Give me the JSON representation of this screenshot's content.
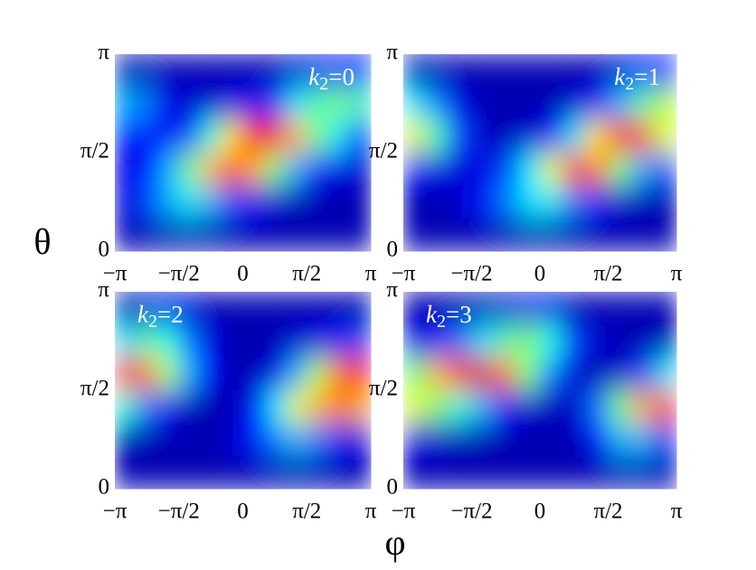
{
  "xlabel": "φ",
  "ylabel": "θ",
  "chart_data": [
    {
      "type": "heatmap",
      "colormap": "jet",
      "clim": [
        0,
        1
      ],
      "annotation": {
        "var": "k",
        "sub": "2",
        "rest": "=0"
      },
      "annotation_corner": "upper right",
      "xlim": [
        -3.14159,
        3.14159
      ],
      "ylim": [
        0,
        3.14159
      ],
      "xticks": [
        {
          "value": -3.14159,
          "label": "−π"
        },
        {
          "value": -1.5708,
          "label": "−π/2"
        },
        0,
        {
          "value": 1.5708,
          "label": "π/2"
        },
        {
          "value": 3.14159,
          "label": "π"
        }
      ],
      "yticks": [
        0,
        {
          "value": 1.5708,
          "label": "π/2"
        },
        {
          "value": 3.14159,
          "label": "π"
        }
      ],
      "z": [
        [
          0.05,
          0.05,
          0.05,
          0.05,
          0.05,
          0.05,
          0.05,
          0.05,
          0.08,
          0.1,
          0.12,
          0.12
        ],
        [
          0.3,
          0.25,
          0.1,
          0.08,
          0.08,
          0.1,
          0.12,
          0.2,
          0.35,
          0.45,
          0.5,
          0.45
        ],
        [
          0.15,
          0.12,
          0.12,
          0.2,
          0.4,
          0.65,
          0.85,
          0.85,
          0.7,
          0.5,
          0.35,
          0.2
        ],
        [
          0.1,
          0.15,
          0.3,
          0.5,
          0.7,
          0.8,
          0.7,
          0.5,
          0.3,
          0.15,
          0.1,
          0.08
        ],
        [
          0.1,
          0.2,
          0.3,
          0.35,
          0.3,
          0.2,
          0.12,
          0.08,
          0.05,
          0.05,
          0.05,
          0.05
        ],
        [
          0.05,
          0.05,
          0.05,
          0.05,
          0.05,
          0.05,
          0.05,
          0.05,
          0.05,
          0.05,
          0.05,
          0.05
        ]
      ]
    },
    {
      "type": "heatmap",
      "colormap": "jet",
      "clim": [
        0,
        1
      ],
      "annotation": {
        "var": "k",
        "sub": "2",
        "rest": "=1"
      },
      "annotation_corner": "upper right",
      "xlim": [
        -3.14159,
        3.14159
      ],
      "ylim": [
        0,
        3.14159
      ],
      "xticks": [
        {
          "value": -3.14159,
          "label": "−π"
        },
        {
          "value": -1.5708,
          "label": "−π/2"
        },
        0,
        {
          "value": 1.5708,
          "label": "π/2"
        },
        {
          "value": 3.14159,
          "label": "π"
        }
      ],
      "yticks": [
        0,
        {
          "value": 1.5708,
          "label": "π/2"
        },
        {
          "value": 3.14159,
          "label": "π"
        }
      ],
      "z": [
        [
          0.05,
          0.05,
          0.05,
          0.05,
          0.05,
          0.05,
          0.05,
          0.05,
          0.05,
          0.08,
          0.12,
          0.15
        ],
        [
          0.35,
          0.25,
          0.1,
          0.05,
          0.05,
          0.05,
          0.05,
          0.08,
          0.15,
          0.3,
          0.45,
          0.55
        ],
        [
          0.6,
          0.45,
          0.2,
          0.08,
          0.05,
          0.08,
          0.15,
          0.35,
          0.65,
          0.85,
          0.8,
          0.6
        ],
        [
          0.15,
          0.1,
          0.08,
          0.1,
          0.2,
          0.35,
          0.6,
          0.8,
          0.75,
          0.5,
          0.3,
          0.2
        ],
        [
          0.05,
          0.05,
          0.08,
          0.15,
          0.25,
          0.35,
          0.35,
          0.25,
          0.15,
          0.08,
          0.05,
          0.05
        ],
        [
          0.05,
          0.05,
          0.05,
          0.05,
          0.05,
          0.05,
          0.05,
          0.05,
          0.05,
          0.05,
          0.05,
          0.05
        ]
      ]
    },
    {
      "type": "heatmap",
      "colormap": "jet",
      "clim": [
        0,
        1
      ],
      "annotation": {
        "var": "k",
        "sub": "2",
        "rest": "=2"
      },
      "annotation_corner": "upper left",
      "xlim": [
        -3.14159,
        3.14159
      ],
      "ylim": [
        0,
        3.14159
      ],
      "xticks": [
        {
          "value": -3.14159,
          "label": "−π"
        },
        {
          "value": -1.5708,
          "label": "−π/2"
        },
        0,
        {
          "value": 1.5708,
          "label": "π/2"
        },
        {
          "value": 3.14159,
          "label": "π"
        }
      ],
      "yticks": [
        0,
        {
          "value": 1.5708,
          "label": "π/2"
        },
        {
          "value": 3.14159,
          "label": "π"
        }
      ],
      "z": [
        [
          0.05,
          0.08,
          0.1,
          0.08,
          0.05,
          0.05,
          0.05,
          0.05,
          0.05,
          0.05,
          0.05,
          0.05
        ],
        [
          0.35,
          0.45,
          0.4,
          0.25,
          0.1,
          0.05,
          0.05,
          0.05,
          0.08,
          0.1,
          0.15,
          0.2
        ],
        [
          0.85,
          0.75,
          0.55,
          0.3,
          0.12,
          0.05,
          0.05,
          0.1,
          0.3,
          0.55,
          0.75,
          0.85
        ],
        [
          0.4,
          0.25,
          0.12,
          0.05,
          0.05,
          0.05,
          0.15,
          0.35,
          0.6,
          0.7,
          0.75,
          0.7
        ],
        [
          0.05,
          0.05,
          0.05,
          0.05,
          0.05,
          0.08,
          0.15,
          0.25,
          0.3,
          0.25,
          0.15,
          0.1
        ],
        [
          0.05,
          0.05,
          0.05,
          0.05,
          0.05,
          0.05,
          0.05,
          0.05,
          0.05,
          0.05,
          0.05,
          0.05
        ]
      ]
    },
    {
      "type": "heatmap",
      "colormap": "jet",
      "clim": [
        0,
        1
      ],
      "annotation": {
        "var": "k",
        "sub": "2",
        "rest": "=3"
      },
      "annotation_corner": "upper left",
      "xlim": [
        -3.14159,
        3.14159
      ],
      "ylim": [
        0,
        3.14159
      ],
      "xticks": [
        {
          "value": -3.14159,
          "label": "−π"
        },
        {
          "value": -1.5708,
          "label": "−π/2"
        },
        0,
        {
          "value": 1.5708,
          "label": "π/2"
        },
        {
          "value": 3.14159,
          "label": "π"
        }
      ],
      "yticks": [
        0,
        {
          "value": 1.5708,
          "label": "π/2"
        },
        {
          "value": 3.14159,
          "label": "π"
        }
      ],
      "z": [
        [
          0.05,
          0.05,
          0.05,
          0.05,
          0.08,
          0.1,
          0.1,
          0.05,
          0.05,
          0.05,
          0.05,
          0.05
        ],
        [
          0.1,
          0.15,
          0.25,
          0.35,
          0.45,
          0.5,
          0.4,
          0.2,
          0.08,
          0.05,
          0.05,
          0.05
        ],
        [
          0.5,
          0.7,
          0.85,
          0.9,
          0.75,
          0.5,
          0.25,
          0.08,
          0.05,
          0.08,
          0.2,
          0.35
        ],
        [
          0.6,
          0.5,
          0.4,
          0.3,
          0.15,
          0.08,
          0.05,
          0.08,
          0.25,
          0.5,
          0.7,
          0.8
        ],
        [
          0.1,
          0.08,
          0.05,
          0.05,
          0.05,
          0.05,
          0.05,
          0.05,
          0.15,
          0.3,
          0.3,
          0.2
        ],
        [
          0.05,
          0.05,
          0.05,
          0.05,
          0.05,
          0.05,
          0.05,
          0.05,
          0.05,
          0.05,
          0.05,
          0.05
        ]
      ]
    }
  ]
}
